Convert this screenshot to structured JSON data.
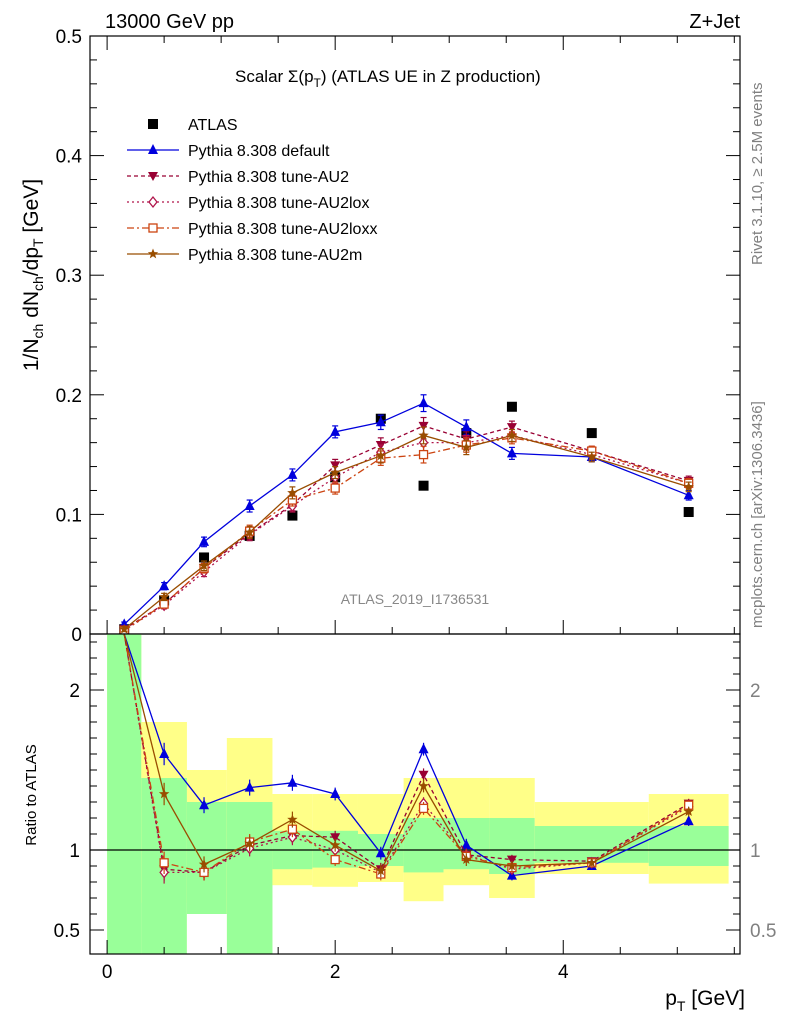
{
  "header": {
    "left": "13000 GeV pp",
    "right": "Z+Jet"
  },
  "side_texts": {
    "rivet": "Rivet 3.1.10, ≥ 2.5M events",
    "mcplots": "mcplots.cern.ch [arXiv:1306.3436]"
  },
  "analysis_tag": "ATLAS_2019_I1736531",
  "colors": {
    "atlas": "#000000",
    "default": "#0000dd",
    "au2": "#990033",
    "au2lox": "#b0144a",
    "au2loxx": "#cc4411",
    "au2m": "#994d00",
    "band_inner": "#99ff99",
    "band_outer": "#ffff88"
  },
  "chart_data": [
    {
      "type": "scatter",
      "panel": "main",
      "title": "Scalar Σ(pT) (ATLAS UE in Z production)",
      "title_parts": {
        "main": "Scalar Σ(p",
        "sub": "T",
        "tail": ") (ATLAS UE in Z production)"
      },
      "xlabel": "pT [GeV]",
      "ylabel": "1/Nch dNch/dpT [GeV]",
      "xlim": [
        -0.15,
        5.55
      ],
      "ylim": [
        0,
        0.5
      ],
      "yticks": [
        {
          "v": 0,
          "label": "0"
        },
        {
          "v": 0.1,
          "label": "0.1"
        },
        {
          "v": 0.2,
          "label": "0.2"
        },
        {
          "v": 0.3,
          "label": "0.3"
        },
        {
          "v": 0.4,
          "label": "0.4"
        },
        {
          "v": 0.5,
          "label": "0.5"
        }
      ],
      "legend_position": "top-left",
      "x": [
        0.15,
        0.5,
        0.85,
        1.25,
        1.625,
        2.0,
        2.4,
        2.775,
        3.15,
        3.55,
        4.25,
        5.1
      ],
      "series": [
        {
          "key": "atlas",
          "name": "ATLAS",
          "marker": "square",
          "dash": "none",
          "values": [
            0.004,
            0.028,
            0.064,
            0.082,
            0.099,
            0.131,
            0.18,
            0.124,
            0.168,
            0.19,
            0.168,
            0.102
          ],
          "err": []
        },
        {
          "key": "default",
          "name": "Pythia 8.308 default",
          "marker": "triangle-up",
          "dash": "",
          "values": [
            0.008,
            0.04,
            0.077,
            0.107,
            0.133,
            0.169,
            0.177,
            0.193,
            0.173,
            0.151,
            0.148,
            0.116
          ],
          "err": [
            0.002,
            0.003,
            0.004,
            0.005,
            0.005,
            0.005,
            0.006,
            0.007,
            0.006,
            0.005,
            0.004,
            0.004
          ]
        },
        {
          "key": "au2",
          "name": "Pythia 8.308 tune-AU2",
          "marker": "triangle-down",
          "dash": "4,3",
          "values": [
            0.004,
            0.025,
            0.055,
            0.084,
            0.108,
            0.141,
            0.158,
            0.174,
            0.163,
            0.173,
            0.153,
            0.128
          ],
          "err": [
            0.002,
            0.003,
            0.004,
            0.005,
            0.005,
            0.005,
            0.006,
            0.007,
            0.006,
            0.005,
            0.004,
            0.004
          ]
        },
        {
          "key": "au2lox",
          "name": "Pythia 8.308 tune-AU2lox",
          "marker": "diamond",
          "dash": "2,3",
          "values": [
            0.003,
            0.024,
            0.052,
            0.083,
            0.107,
            0.131,
            0.152,
            0.16,
            0.16,
            0.166,
            0.15,
            0.126
          ],
          "err": [
            0.002,
            0.003,
            0.004,
            0.005,
            0.005,
            0.005,
            0.006,
            0.007,
            0.006,
            0.005,
            0.004,
            0.004
          ]
        },
        {
          "key": "au2loxx",
          "name": "Pythia 8.308 tune-AU2loxx",
          "marker": "square-open",
          "dash": "7,3,2,3",
          "values": [
            0.003,
            0.025,
            0.055,
            0.086,
            0.112,
            0.122,
            0.147,
            0.15,
            0.158,
            0.164,
            0.153,
            0.126
          ],
          "err": [
            0.002,
            0.003,
            0.004,
            0.005,
            0.005,
            0.005,
            0.006,
            0.007,
            0.006,
            0.005,
            0.004,
            0.004
          ]
        },
        {
          "key": "au2m",
          "name": "Pythia 8.308 tune-AU2m",
          "marker": "star",
          "dash": "",
          "values": [
            0.004,
            0.031,
            0.057,
            0.085,
            0.118,
            0.135,
            0.149,
            0.166,
            0.156,
            0.166,
            0.148,
            0.123
          ],
          "err": [
            0.002,
            0.003,
            0.004,
            0.005,
            0.005,
            0.005,
            0.006,
            0.007,
            0.006,
            0.005,
            0.004,
            0.004
          ]
        }
      ]
    },
    {
      "type": "scatter",
      "panel": "ratio",
      "ylabel": "Ratio to ATLAS",
      "xlabel": "pT [GeV]",
      "xlim": [
        -0.15,
        5.55
      ],
      "ylim": [
        0.35,
        2.35
      ],
      "reference_line": 1,
      "yticks": [
        {
          "v": 0.5,
          "label": "0.5"
        },
        {
          "v": 1,
          "label": "1"
        },
        {
          "v": 2,
          "label": "2"
        }
      ],
      "xticks": [
        {
          "v": 0,
          "label": "0"
        },
        {
          "v": 2,
          "label": "2"
        },
        {
          "v": 4,
          "label": "4"
        }
      ],
      "bins": [
        [
          0.0,
          0.3
        ],
        [
          0.3,
          0.7
        ],
        [
          0.7,
          1.05
        ],
        [
          1.05,
          1.45
        ],
        [
          1.45,
          1.8
        ],
        [
          1.8,
          2.2
        ],
        [
          2.2,
          2.6
        ],
        [
          2.6,
          2.95
        ],
        [
          2.95,
          3.35
        ],
        [
          3.35,
          3.75
        ],
        [
          3.75,
          4.75
        ],
        [
          4.75,
          5.45
        ]
      ],
      "band_inner": [
        [
          0.35,
          2.35
        ],
        [
          0.35,
          1.45
        ],
        [
          0.35,
          1.3
        ],
        [
          0.35,
          1.3
        ],
        [
          0.35,
          1.12
        ],
        [
          0.35,
          1.12
        ],
        [
          0.35,
          1.1
        ],
        [
          0.35,
          1.2
        ],
        [
          0.35,
          1.2
        ],
        [
          0.35,
          1.2
        ],
        [
          0.35,
          1.15
        ],
        [
          0.35,
          1.15
        ]
      ],
      "band_outer": [
        [
          0.35,
          2.35
        ],
        [
          0.35,
          1.8
        ],
        [
          0.35,
          1.5
        ],
        [
          0.35,
          1.7
        ],
        [
          0.35,
          1.35
        ],
        [
          0.35,
          1.35
        ],
        [
          0.35,
          1.35
        ],
        [
          0.35,
          1.45
        ],
        [
          0.35,
          1.45
        ],
        [
          0.35,
          1.45
        ],
        [
          0.35,
          1.3
        ],
        [
          0.35,
          1.35
        ]
      ],
      "band_inner_low": [
        0.35,
        0.35,
        0.35,
        0.35,
        0.88,
        0.89,
        0.9,
        0.86,
        0.88,
        0.85,
        0.92,
        0.9
      ],
      "band_outer_low": [
        0.35,
        0.67,
        0.35,
        0.35,
        0.78,
        0.77,
        0.8,
        0.68,
        0.78,
        0.7,
        0.85,
        0.79
      ],
      "white_gaps": [
        [
          0.7,
          1.05,
          0.35,
          0.6
        ]
      ],
      "series": [
        {
          "key": "default",
          "values": [
            2.35,
            1.6,
            1.28,
            1.39,
            1.42,
            1.35,
            0.98,
            1.63,
            1.03,
            0.84,
            0.9,
            1.18
          ],
          "err": [
            0.05,
            0.07,
            0.05,
            0.05,
            0.05,
            0.04,
            0.04,
            0.04,
            0.04,
            0.03,
            0.02,
            0.03
          ]
        },
        {
          "key": "au2",
          "values": [
            2.35,
            0.88,
            0.86,
            1.03,
            1.09,
            1.08,
            0.88,
            1.47,
            0.97,
            0.94,
            0.93,
            1.29
          ],
          "err": [
            0.05,
            0.07,
            0.05,
            0.05,
            0.05,
            0.04,
            0.04,
            0.04,
            0.04,
            0.03,
            0.02,
            0.03
          ]
        },
        {
          "key": "au2lox",
          "values": [
            2.35,
            0.86,
            0.86,
            1.01,
            1.08,
            1.0,
            0.86,
            1.29,
            0.97,
            0.88,
            0.92,
            1.27
          ],
          "err": [
            0.05,
            0.07,
            0.05,
            0.05,
            0.05,
            0.04,
            0.04,
            0.04,
            0.04,
            0.03,
            0.02,
            0.03
          ]
        },
        {
          "key": "au2loxx",
          "values": [
            2.35,
            0.92,
            0.86,
            1.05,
            1.13,
            0.94,
            0.85,
            1.26,
            0.96,
            0.89,
            0.92,
            1.28
          ],
          "err": [
            0.05,
            0.07,
            0.05,
            0.05,
            0.05,
            0.04,
            0.04,
            0.04,
            0.04,
            0.03,
            0.02,
            0.03
          ]
        },
        {
          "key": "au2m",
          "values": [
            2.35,
            1.35,
            0.91,
            1.04,
            1.19,
            1.03,
            0.87,
            1.4,
            0.94,
            0.9,
            0.92,
            1.24
          ],
          "err": [
            0.05,
            0.07,
            0.05,
            0.05,
            0.05,
            0.04,
            0.04,
            0.04,
            0.04,
            0.03,
            0.02,
            0.03
          ]
        }
      ]
    }
  ]
}
